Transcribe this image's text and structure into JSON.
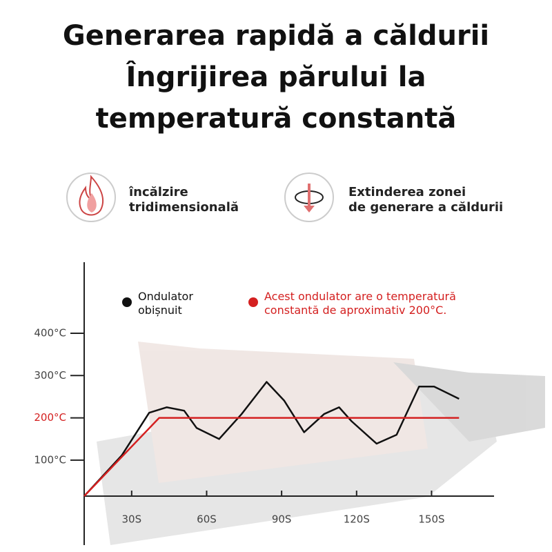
{
  "header": {
    "lines": [
      "Generarea rapidă a căldurii",
      "Îngrijirea părului la",
      "temperatură constantă"
    ]
  },
  "features": [
    {
      "line1": "încălzire",
      "line2": "tridimensională"
    },
    {
      "line1": "Extinderea zonei",
      "line2": "de generare a căldurii"
    }
  ],
  "chart_data": {
    "type": "line",
    "series": [
      {
        "name": "Ondulator obișnuit",
        "color": "#111111",
        "x": [
          11,
          26,
          37,
          44,
          51,
          56,
          65,
          74,
          84,
          91,
          99,
          107,
          113,
          118,
          128,
          136,
          145,
          151,
          161
        ],
        "values": [
          15,
          111,
          212,
          225,
          217,
          176,
          150,
          209,
          285,
          241,
          166,
          209,
          225,
          192,
          139,
          160,
          274,
          274,
          245
        ]
      },
      {
        "name": "Acest ondulator are o temperatură constantă de aproximativ 200°C.",
        "color": "#d42020",
        "x": [
          11,
          41,
          161
        ],
        "values": [
          15,
          200,
          200
        ]
      }
    ],
    "xlim": [
      11,
      175
    ],
    "ylim": [
      15,
      568
    ],
    "xticks": [
      {
        "value": 30,
        "label": "30S"
      },
      {
        "value": 60,
        "label": "60S"
      },
      {
        "value": 90,
        "label": "90S"
      },
      {
        "value": 120,
        "label": "120S"
      },
      {
        "value": 150,
        "label": "150S"
      }
    ],
    "yticks": [
      {
        "value": 100,
        "label": "100°C"
      },
      {
        "value": 200,
        "label": "200°C"
      },
      {
        "value": 300,
        "label": "300°C"
      },
      {
        "value": 400,
        "label": "400°C"
      }
    ]
  }
}
